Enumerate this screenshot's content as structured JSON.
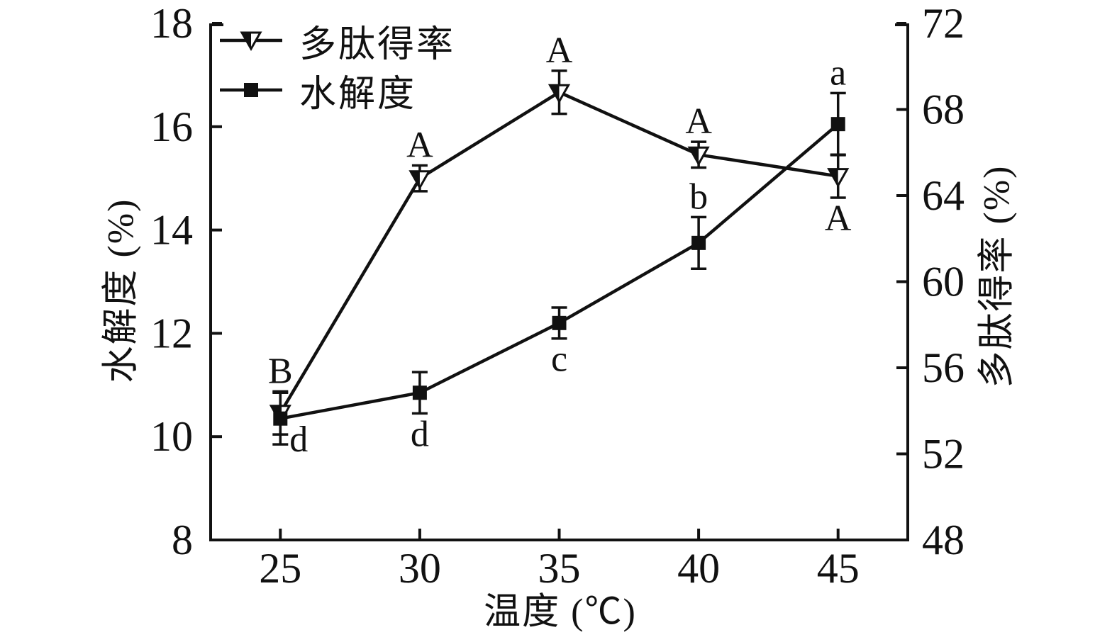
{
  "chart_data": {
    "type": "line",
    "title": "",
    "xlabel": "温度 (℃)",
    "x": [
      25,
      30,
      35,
      40,
      45
    ],
    "x_ticks": [
      25,
      30,
      35,
      40,
      45
    ],
    "xlim": [
      22.5,
      47.5
    ],
    "grid": false,
    "color": "#111111",
    "background": "#ffffff",
    "axes": {
      "left": {
        "label": "水解度 (%)",
        "lim": [
          8,
          18
        ],
        "ticks": [
          8,
          10,
          12,
          14,
          16,
          18
        ]
      },
      "right": {
        "label": "多肽得率 (%)",
        "lim": [
          48,
          72
        ],
        "ticks": [
          48,
          52,
          56,
          60,
          64,
          68,
          72
        ]
      }
    },
    "legend": {
      "position": "top-left",
      "items": [
        "多肽得率",
        "水解度"
      ]
    },
    "series": [
      {
        "name": "多肽得率",
        "axis": "right",
        "marker": "triangle-down-half-filled",
        "values": [
          53.9,
          64.8,
          68.8,
          65.9,
          64.9
        ],
        "errors": [
          1.0,
          0.6,
          1.0,
          0.6,
          1.0
        ],
        "point_labels": [
          "B",
          "A",
          "A",
          "A",
          "A"
        ],
        "label_side": [
          "above",
          "above",
          "above",
          "above",
          "below"
        ],
        "label_dx": [
          0,
          0,
          0,
          0,
          0
        ],
        "label_dy": [
          0,
          0,
          0,
          0,
          0
        ]
      },
      {
        "name": "水解度",
        "axis": "left",
        "marker": "square-filled",
        "values": [
          10.35,
          10.85,
          12.2,
          13.75,
          16.05
        ],
        "errors": [
          0.5,
          0.4,
          0.3,
          0.5,
          0.6
        ],
        "point_labels": [
          "d",
          "d",
          "c",
          "b",
          "a"
        ],
        "label_side": [
          "below",
          "below",
          "below",
          "above",
          "above"
        ],
        "label_dx": [
          26,
          0,
          0,
          0,
          0
        ],
        "label_dy": [
          -36,
          0,
          0,
          0,
          0
        ]
      }
    ]
  }
}
